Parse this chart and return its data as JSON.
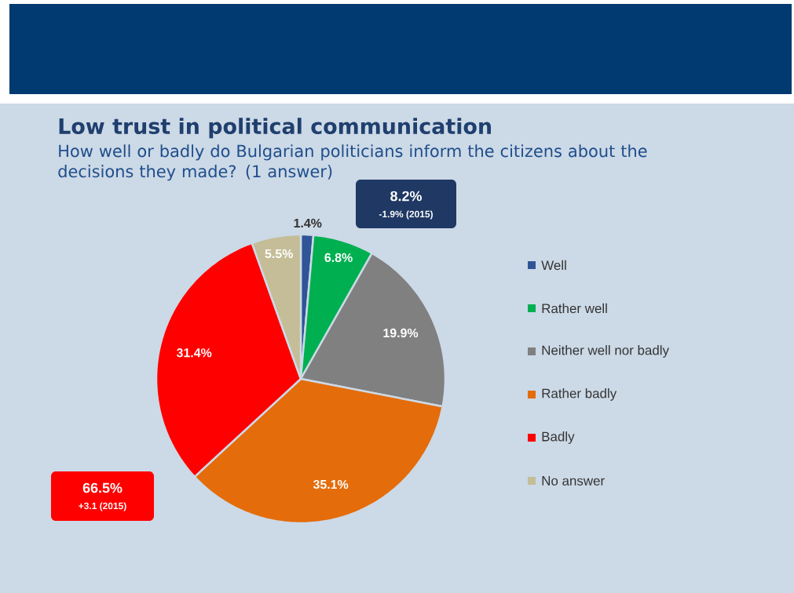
{
  "chart_data": {
    "type": "pie",
    "title": "Low trust in political communication",
    "subtitle": "How well or badly do Bulgarian politicians inform the citizens about the decisions they made? (1 answer)",
    "categories": [
      "Well",
      "Rather well",
      "Neither well nor badly",
      "Rather badly",
      "Badly",
      "No answer"
    ],
    "values": [
      1.4,
      6.8,
      19.9,
      35.1,
      31.4,
      5.5
    ],
    "value_labels": [
      "1.4%",
      "6.8%",
      "19.9%",
      "35.1%",
      "31.4%",
      "5.5%"
    ],
    "colors": [
      "#2f5597",
      "#00b050",
      "#808080",
      "#e46c0a",
      "#ff0000",
      "#c4bd97"
    ],
    "legend": "right",
    "annotations": [
      "8.2%",
      "-1.9% (2015)",
      "66.5%",
      "+3.1 (2015)"
    ]
  }
}
